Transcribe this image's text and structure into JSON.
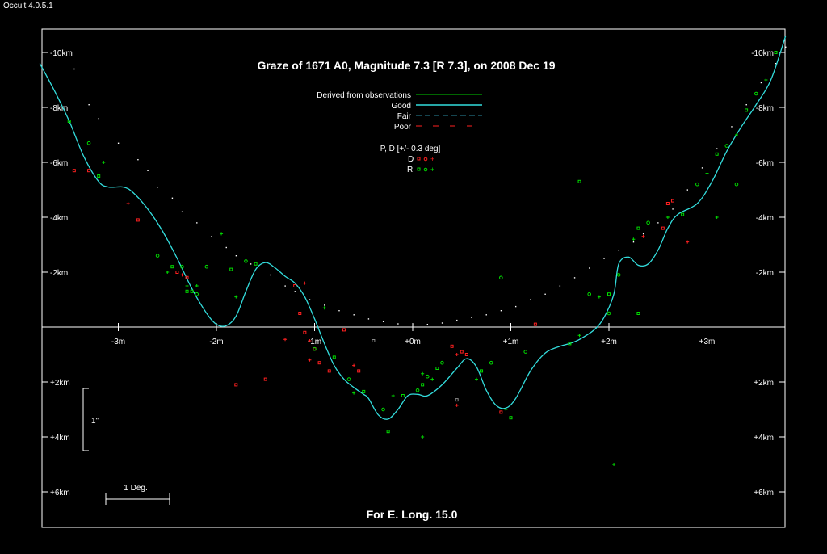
{
  "app": {
    "version": "Occult 4.0.5.1"
  },
  "chart_data": {
    "type": "scatter",
    "title": "Graze of  1671 A0,  Magnitude 7.3 [R 7.3],  on 2008 Dec 19",
    "footer": "For E. Long. 15.0",
    "xlabel": "",
    "ylabel": "",
    "xlim": [
      -3.8,
      3.8
    ],
    "ylim": [
      -11,
      7.2
    ],
    "x_ticks": [
      {
        "v": -3,
        "label": "-3m"
      },
      {
        "v": -2,
        "label": "-2m"
      },
      {
        "v": -1,
        "label": "-1m"
      },
      {
        "v": 0,
        "label": "+0m"
      },
      {
        "v": 1,
        "label": "+1m"
      },
      {
        "v": 2,
        "label": "+2m"
      },
      {
        "v": 3,
        "label": "+3m"
      }
    ],
    "y_ticks": [
      {
        "v": -10,
        "label": "-10km"
      },
      {
        "v": -8,
        "label": "-8km"
      },
      {
        "v": -6,
        "label": "-6km"
      },
      {
        "v": -4,
        "label": "-4km"
      },
      {
        "v": -2,
        "label": "-2km"
      },
      {
        "v": 2,
        "label": "+2km"
      },
      {
        "v": 4,
        "label": "+4km"
      },
      {
        "v": 6,
        "label": "+6km"
      }
    ],
    "legend": {
      "lines": [
        {
          "label": "Derived from observations",
          "color": "#00cc00",
          "style": "solid"
        },
        {
          "label": "Good",
          "color": "#00cccc",
          "style": "solid"
        },
        {
          "label": "Fair",
          "color": "#2a8aa0",
          "style": "dashed"
        },
        {
          "label": "Poor",
          "color": "#ff2020",
          "style": "dashed"
        }
      ],
      "pd_title": "P, D [+/- 0.3 deg]",
      "d_label": "D",
      "r_label": "R"
    },
    "scale_1arcsec": "1\"",
    "scale_1deg": "1 Deg.",
    "colors": {
      "good": "#33dddd",
      "D": "#ff2020",
      "R": "#00dd00",
      "white": "#ffffff",
      "grey": "#888888"
    },
    "limb_profile": [
      [
        -3.8,
        -9.6
      ],
      [
        -3.65,
        -8.6
      ],
      [
        -3.5,
        -7.5
      ],
      [
        -3.35,
        -6.2
      ],
      [
        -3.2,
        -5.3
      ],
      [
        -3.1,
        -5.1
      ],
      [
        -2.95,
        -5.1
      ],
      [
        -2.85,
        -4.9
      ],
      [
        -2.7,
        -4.3
      ],
      [
        -2.55,
        -3.5
      ],
      [
        -2.4,
        -2.5
      ],
      [
        -2.25,
        -1.4
      ],
      [
        -2.1,
        -0.5
      ],
      [
        -2.0,
        -0.1
      ],
      [
        -1.9,
        -0.05
      ],
      [
        -1.8,
        -0.4
      ],
      [
        -1.7,
        -1.3
      ],
      [
        -1.6,
        -2.1
      ],
      [
        -1.5,
        -2.35
      ],
      [
        -1.4,
        -2.15
      ],
      [
        -1.3,
        -1.85
      ],
      [
        -1.2,
        -1.6
      ],
      [
        -1.1,
        -1.1
      ],
      [
        -1.0,
        -0.3
      ],
      [
        -0.9,
        0.6
      ],
      [
        -0.8,
        1.4
      ],
      [
        -0.7,
        1.9
      ],
      [
        -0.6,
        2.2
      ],
      [
        -0.5,
        2.45
      ],
      [
        -0.45,
        2.6
      ],
      [
        -0.35,
        3.2
      ],
      [
        -0.25,
        3.35
      ],
      [
        -0.15,
        3.0
      ],
      [
        -0.05,
        2.5
      ],
      [
        0.05,
        2.45
      ],
      [
        0.15,
        2.5
      ],
      [
        0.3,
        2.1
      ],
      [
        0.45,
        1.5
      ],
      [
        0.55,
        1.15
      ],
      [
        0.65,
        1.45
      ],
      [
        0.75,
        2.3
      ],
      [
        0.85,
        2.85
      ],
      [
        0.95,
        2.95
      ],
      [
        1.05,
        2.6
      ],
      [
        1.2,
        1.6
      ],
      [
        1.35,
        0.95
      ],
      [
        1.5,
        0.7
      ],
      [
        1.6,
        0.6
      ],
      [
        1.7,
        0.45
      ],
      [
        1.85,
        0.1
      ],
      [
        1.95,
        -0.35
      ],
      [
        2.05,
        -1.2
      ],
      [
        2.1,
        -2.3
      ],
      [
        2.2,
        -2.55
      ],
      [
        2.3,
        -2.25
      ],
      [
        2.4,
        -2.3
      ],
      [
        2.5,
        -2.8
      ],
      [
        2.6,
        -3.6
      ],
      [
        2.7,
        -4.1
      ],
      [
        2.9,
        -4.5
      ],
      [
        3.05,
        -5.3
      ],
      [
        3.2,
        -6.4
      ],
      [
        3.35,
        -7.3
      ],
      [
        3.5,
        -8.1
      ],
      [
        3.65,
        -9.0
      ],
      [
        3.8,
        -10.6
      ]
    ],
    "D_points": [
      [
        -3.45,
        -5.7
      ],
      [
        -3.3,
        -5.7
      ],
      [
        -2.9,
        -4.5
      ],
      [
        -2.8,
        -3.9
      ],
      [
        -2.4,
        -2.0
      ],
      [
        -2.35,
        -1.9
      ],
      [
        -2.3,
        -1.8
      ],
      [
        -1.2,
        -1.5
      ],
      [
        -1.1,
        -1.6
      ],
      [
        -1.15,
        -0.5
      ],
      [
        -1.1,
        0.2
      ],
      [
        -1.05,
        0.5
      ],
      [
        -1.0,
        0.8
      ],
      [
        -0.95,
        1.3
      ],
      [
        -1.05,
        1.2
      ],
      [
        -0.85,
        1.6
      ],
      [
        -0.7,
        0.1
      ],
      [
        -1.3,
        0.45
      ],
      [
        -1.5,
        1.9
      ],
      [
        -1.8,
        2.1
      ],
      [
        -0.6,
        1.4
      ],
      [
        -0.55,
        1.6
      ],
      [
        0.4,
        0.7
      ],
      [
        0.45,
        1.0
      ],
      [
        0.5,
        0.9
      ],
      [
        0.55,
        1.0
      ],
      [
        0.45,
        2.85
      ],
      [
        0.9,
        3.1
      ],
      [
        1.25,
        -0.1
      ],
      [
        2.35,
        -3.3
      ],
      [
        2.6,
        -4.5
      ],
      [
        2.65,
        -4.6
      ],
      [
        2.8,
        -3.1
      ],
      [
        2.55,
        -3.6
      ]
    ],
    "R_points": [
      [
        -3.5,
        -7.5
      ],
      [
        -3.3,
        -6.7
      ],
      [
        -3.15,
        -6.0
      ],
      [
        -3.2,
        -5.5
      ],
      [
        -2.6,
        -2.6
      ],
      [
        -2.5,
        -2.0
      ],
      [
        -2.45,
        -2.2
      ],
      [
        -2.35,
        -2.2
      ],
      [
        -2.3,
        -1.5
      ],
      [
        -2.25,
        -1.3
      ],
      [
        -2.2,
        -1.2
      ],
      [
        -2.2,
        -1.5
      ],
      [
        -2.3,
        -1.3
      ],
      [
        -2.1,
        -2.2
      ],
      [
        -1.95,
        -3.4
      ],
      [
        -1.85,
        -2.1
      ],
      [
        -1.7,
        -2.4
      ],
      [
        -1.8,
        -1.1
      ],
      [
        -1.6,
        -2.3
      ],
      [
        -1.0,
        0.8
      ],
      [
        -0.9,
        -0.7
      ],
      [
        -0.8,
        1.1
      ],
      [
        -0.65,
        1.9
      ],
      [
        -0.6,
        2.4
      ],
      [
        -0.5,
        2.35
      ],
      [
        -0.3,
        3.0
      ],
      [
        -0.2,
        2.5
      ],
      [
        -0.1,
        2.5
      ],
      [
        0.05,
        2.3
      ],
      [
        0.1,
        1.7
      ],
      [
        0.1,
        2.1
      ],
      [
        0.15,
        1.8
      ],
      [
        0.2,
        1.9
      ],
      [
        0.25,
        1.5
      ],
      [
        0.3,
        1.3
      ],
      [
        0.65,
        1.9
      ],
      [
        0.7,
        1.6
      ],
      [
        0.8,
        1.3
      ],
      [
        0.95,
        3.0
      ],
      [
        1.0,
        3.3
      ],
      [
        1.15,
        0.9
      ],
      [
        0.1,
        4.0
      ],
      [
        -0.25,
        3.8
      ],
      [
        0.9,
        -1.8
      ],
      [
        1.7,
        0.3
      ],
      [
        1.6,
        0.6
      ],
      [
        1.8,
        -1.2
      ],
      [
        1.9,
        -1.1
      ],
      [
        2.0,
        -1.2
      ],
      [
        2.1,
        -1.9
      ],
      [
        2.25,
        -3.2
      ],
      [
        2.3,
        -3.6
      ],
      [
        2.4,
        -3.8
      ],
      [
        2.6,
        -4.0
      ],
      [
        2.75,
        -4.1
      ],
      [
        2.9,
        -5.2
      ],
      [
        3.0,
        -5.6
      ],
      [
        3.1,
        -6.3
      ],
      [
        3.2,
        -6.6
      ],
      [
        3.3,
        -7.0
      ],
      [
        3.4,
        -7.9
      ],
      [
        3.5,
        -8.5
      ],
      [
        3.6,
        -9.0
      ],
      [
        3.7,
        -10.0
      ],
      [
        3.3,
        -5.2
      ],
      [
        3.1,
        -4.0
      ],
      [
        2.3,
        -0.5
      ],
      [
        2.0,
        -0.5
      ],
      [
        2.05,
        5.0
      ],
      [
        1.7,
        -5.3
      ]
    ],
    "grey_points": [
      [
        -0.4,
        0.5
      ],
      [
        0.45,
        2.65
      ]
    ],
    "white_dots": [
      [
        -3.45,
        -9.4
      ],
      [
        -3.3,
        -8.1
      ],
      [
        -3.2,
        -7.6
      ],
      [
        -3.0,
        -6.7
      ],
      [
        -2.8,
        -6.1
      ],
      [
        -2.7,
        -5.7
      ],
      [
        -2.6,
        -5.1
      ],
      [
        -2.45,
        -4.7
      ],
      [
        -2.35,
        -4.2
      ],
      [
        -2.2,
        -3.8
      ],
      [
        -2.05,
        -3.3
      ],
      [
        -1.9,
        -2.9
      ],
      [
        -1.8,
        -2.6
      ],
      [
        -1.65,
        -2.3
      ],
      [
        -1.45,
        -1.9
      ],
      [
        -1.3,
        -1.5
      ],
      [
        -1.2,
        -1.3
      ],
      [
        -1.05,
        -1.0
      ],
      [
        -0.9,
        -0.8
      ],
      [
        -0.75,
        -0.6
      ],
      [
        -0.6,
        -0.45
      ],
      [
        -0.45,
        -0.3
      ],
      [
        -0.3,
        -0.2
      ],
      [
        -0.15,
        -0.12
      ],
      [
        0.0,
        -0.08
      ],
      [
        0.15,
        -0.1
      ],
      [
        0.3,
        -0.15
      ],
      [
        0.45,
        -0.25
      ],
      [
        0.6,
        -0.35
      ],
      [
        0.75,
        -0.45
      ],
      [
        0.9,
        -0.6
      ],
      [
        1.05,
        -0.75
      ],
      [
        1.2,
        -1.0
      ],
      [
        1.35,
        -1.2
      ],
      [
        1.5,
        -1.5
      ],
      [
        1.65,
        -1.8
      ],
      [
        1.8,
        -2.15
      ],
      [
        1.95,
        -2.5
      ],
      [
        2.1,
        -2.8
      ],
      [
        2.25,
        -3.1
      ],
      [
        2.35,
        -3.4
      ],
      [
        2.5,
        -3.8
      ],
      [
        2.65,
        -4.3
      ],
      [
        2.8,
        -5.0
      ],
      [
        2.95,
        -5.8
      ],
      [
        3.1,
        -6.5
      ],
      [
        3.25,
        -7.3
      ],
      [
        3.4,
        -8.1
      ],
      [
        3.55,
        -8.9
      ],
      [
        3.7,
        -9.6
      ],
      [
        3.8,
        -10.2
      ]
    ]
  }
}
